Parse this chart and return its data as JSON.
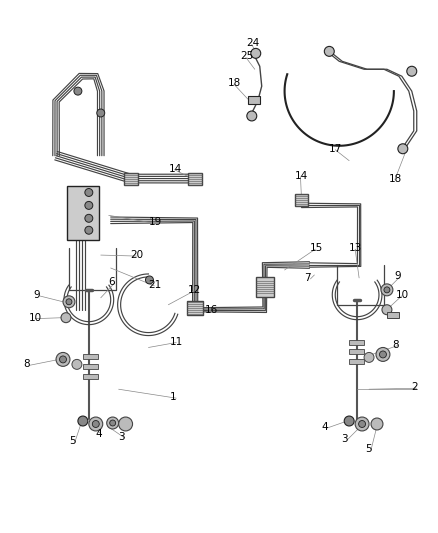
{
  "background_color": "#ffffff",
  "figure_width": 4.38,
  "figure_height": 5.33,
  "dpi": 100,
  "line_color": "#444444",
  "line_color_dark": "#222222",
  "label_color": "#000000",
  "label_fontsize": 7.5,
  "gray_light": "#bbbbbb",
  "gray_mid": "#888888",
  "gray_dark": "#555555"
}
